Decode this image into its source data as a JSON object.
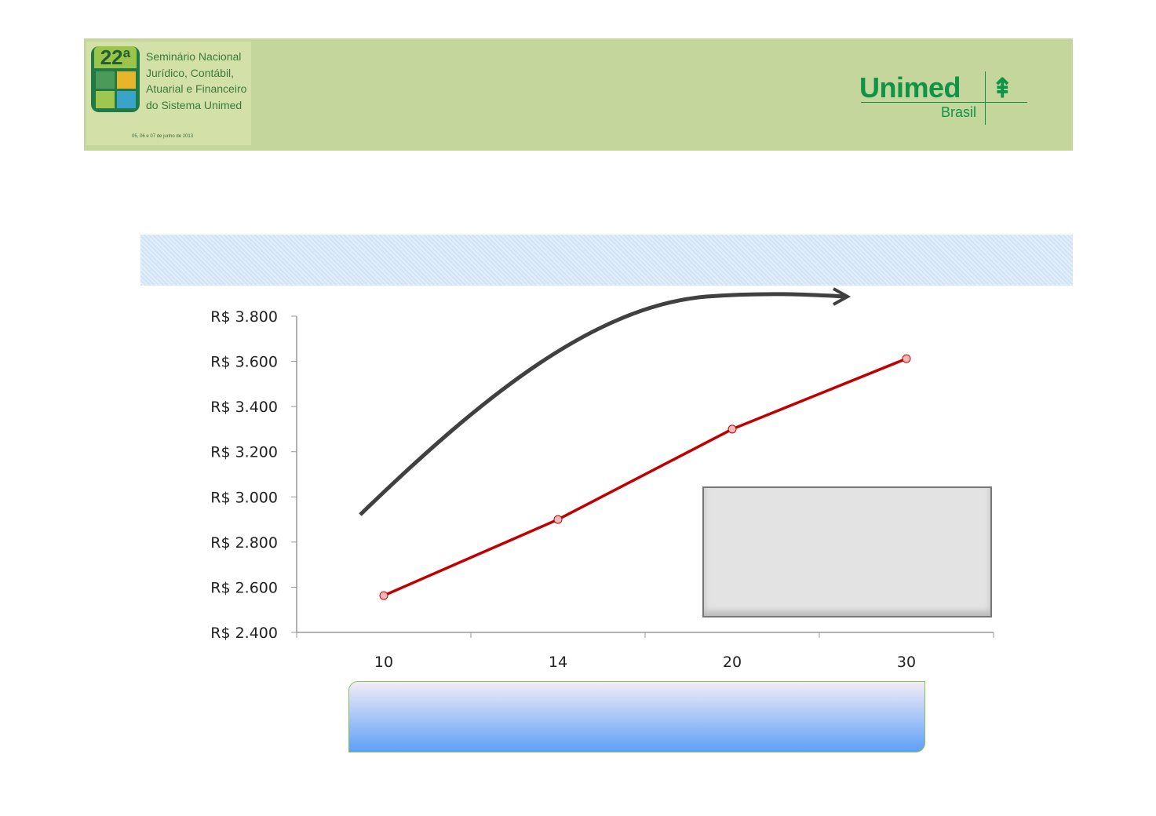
{
  "header": {
    "seminar_edition": "22ª",
    "seminar_title_lines": [
      "Seminário Nacional",
      "Jurídico, Contábil,",
      "Atuarial e Financeiro",
      "do Sistema Unimed"
    ],
    "seminar_date": "05, 06 e 07 de junho de 2013",
    "brand": "Unimed",
    "brand_sub": "Brasil",
    "header_color": "#c4d69b",
    "brand_color": "#0f9447"
  },
  "chart_data": {
    "type": "line",
    "categories": [
      "10",
      "14",
      "20",
      "30"
    ],
    "values": [
      2563,
      2900,
      3300,
      3612
    ],
    "ylim": [
      2400,
      3800
    ],
    "yticks": [
      2400,
      2600,
      2800,
      3000,
      3200,
      3400,
      3600,
      3800
    ],
    "ytick_labels": [
      "R$ 2.400",
      "R$ 2.600",
      "R$ 2.800",
      "R$ 3.000",
      "R$ 3.200",
      "R$ 3.400",
      "R$ 3.600",
      "R$ 3.800"
    ],
    "line_color": "#c00000",
    "marker_color": "#f4b8b8",
    "grid": false,
    "annotation": "curved-arrow trend"
  }
}
